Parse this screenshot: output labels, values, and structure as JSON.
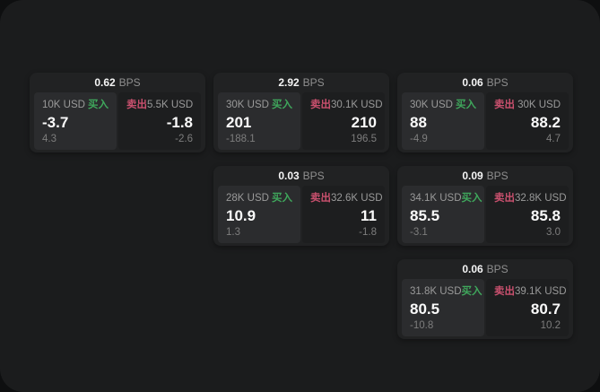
{
  "labels": {
    "bps": "BPS",
    "buy": "买入",
    "sell": "卖出"
  },
  "colors": {
    "buy": "#3fa75c",
    "sell": "#c9506e"
  },
  "cards": [
    {
      "bps": "0.62",
      "buy": {
        "notional": "10K USD",
        "price": "-3.7",
        "delta": "4.3"
      },
      "sell": {
        "notional": "5.5K USD",
        "price": "-1.8",
        "delta": "-2.6"
      }
    },
    {
      "bps": "2.92",
      "buy": {
        "notional": "30K USD",
        "price": "201",
        "delta": "-188.1"
      },
      "sell": {
        "notional": "30.1K USD",
        "price": "210",
        "delta": "196.5"
      }
    },
    {
      "bps": "0.06",
      "buy": {
        "notional": "30K USD",
        "price": "88",
        "delta": "-4.9"
      },
      "sell": {
        "notional": "30K USD",
        "price": "88.2",
        "delta": "4.7"
      }
    },
    {
      "bps": "0.03",
      "buy": {
        "notional": "28K USD",
        "price": "10.9",
        "delta": "1.3"
      },
      "sell": {
        "notional": "32.6K USD",
        "price": "11",
        "delta": "-1.8"
      }
    },
    {
      "bps": "0.09",
      "buy": {
        "notional": "34.1K USD",
        "price": "85.5",
        "delta": "-3.1"
      },
      "sell": {
        "notional": "32.8K USD",
        "price": "85.8",
        "delta": "3.0"
      }
    },
    {
      "bps": "0.06",
      "buy": {
        "notional": "31.8K USD",
        "price": "80.5",
        "delta": "-10.8"
      },
      "sell": {
        "notional": "39.1K USD",
        "price": "80.7",
        "delta": "10.2"
      }
    }
  ]
}
